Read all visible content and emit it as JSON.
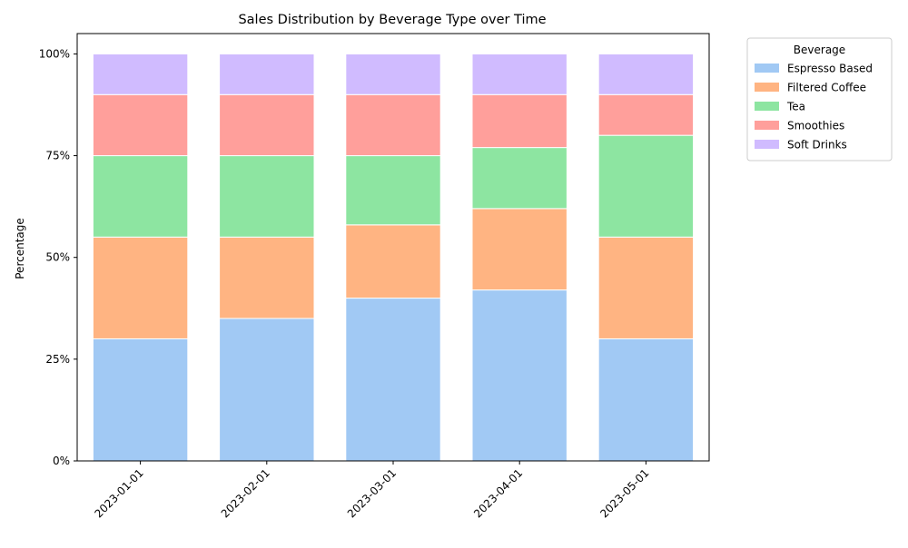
{
  "chart_data": {
    "type": "bar",
    "stacked": true,
    "title": "Sales Distribution by Beverage Type over Time",
    "xlabel": "",
    "ylabel": "Percentage",
    "ylim": [
      0,
      105
    ],
    "yticks": [
      0,
      25,
      50,
      75,
      100
    ],
    "ytick_labels": [
      "0%",
      "25%",
      "50%",
      "75%",
      "100%"
    ],
    "categories": [
      "2023-01-01",
      "2023-02-01",
      "2023-03-01",
      "2023-04-01",
      "2023-05-01"
    ],
    "series": [
      {
        "name": "Espresso Based",
        "color": "#a1c9f4",
        "values": [
          30,
          35,
          40,
          42,
          30
        ]
      },
      {
        "name": "Filtered Coffee",
        "color": "#ffb482",
        "values": [
          25,
          20,
          18,
          20,
          25
        ]
      },
      {
        "name": "Tea",
        "color": "#8de5a1",
        "values": [
          20,
          20,
          17,
          15,
          25
        ]
      },
      {
        "name": "Smoothies",
        "color": "#ff9f9b",
        "values": [
          15,
          15,
          15,
          13,
          10
        ]
      },
      {
        "name": "Soft Drinks",
        "color": "#d0bbff",
        "values": [
          10,
          10,
          10,
          10,
          10
        ]
      }
    ],
    "legend": {
      "title": "Beverage",
      "placement": "outside-top-right"
    },
    "grid": false
  }
}
